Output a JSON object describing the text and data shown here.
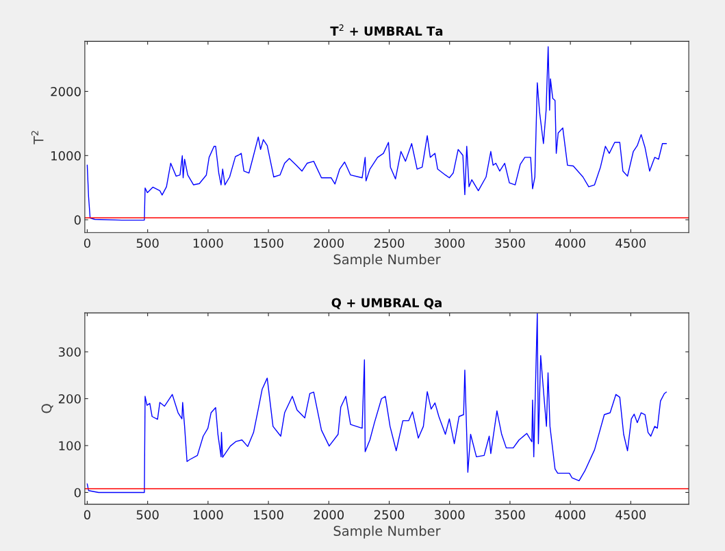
{
  "chart_data": [
    {
      "type": "line",
      "title": "T$^{2}$ + UMBRAL Ta",
      "xlabel": "Sample Number",
      "ylabel": "T$^{2}$",
      "x": [
        0,
        11,
        24,
        62,
        287,
        473,
        479,
        498,
        543,
        601,
        620,
        656,
        691,
        736,
        768,
        787,
        794,
        806,
        832,
        880,
        928,
        986,
        1009,
        1050,
        1063,
        1089,
        1108,
        1121,
        1140,
        1179,
        1227,
        1249,
        1275,
        1297,
        1339,
        1377,
        1416,
        1435,
        1458,
        1490,
        1544,
        1596,
        1634,
        1673,
        1730,
        1778,
        1820,
        1875,
        1939,
        2019,
        2051,
        2090,
        2131,
        2180,
        2276,
        2301,
        2308,
        2340,
        2404,
        2452,
        2494,
        2510,
        2552,
        2597,
        2635,
        2686,
        2731,
        2773,
        2815,
        2840,
        2879,
        2901,
        2965,
        2998,
        3030,
        3071,
        3110,
        3126,
        3142,
        3161,
        3184,
        3238,
        3302,
        3341,
        3360,
        3383,
        3415,
        3456,
        3495,
        3543,
        3585,
        3623,
        3671,
        3687,
        3706,
        3726,
        3745,
        3777,
        3799,
        3816,
        3828,
        3835,
        3854,
        3873,
        3883,
        3899,
        3937,
        3976,
        4024,
        4104,
        4152,
        4200,
        4249,
        4290,
        4322,
        4367,
        4409,
        4435,
        4473,
        4521,
        4554,
        4586,
        4618,
        4656,
        4698,
        4730,
        4762,
        4794
      ],
      "series": [
        {
          "color": "#0000ff",
          "values": [
            850,
            360,
            25,
            6,
            -6,
            -6,
            495,
            422,
            508,
            453,
            385,
            514,
            880,
            679,
            697,
            997,
            654,
            942,
            697,
            544,
            563,
            697,
            972,
            1144,
            1144,
            728,
            544,
            789,
            544,
            667,
            985,
            1003,
            1034,
            758,
            728,
            1003,
            1290,
            1095,
            1248,
            1156,
            667,
            697,
            880,
            954,
            850,
            758,
            880,
            911,
            654,
            654,
            557,
            789,
            899,
            697,
            654,
            972,
            605,
            789,
            972,
            1034,
            1205,
            820,
            636,
            1064,
            911,
            1187,
            789,
            820,
            1309,
            972,
            1034,
            789,
            697,
            654,
            728,
            1095,
            1003,
            391,
            1144,
            514,
            624,
            453,
            667,
            1064,
            850,
            880,
            758,
            880,
            575,
            544,
            862,
            972,
            972,
            483,
            667,
            2134,
            1676,
            1187,
            1706,
            2697,
            1706,
            2196,
            1890,
            1859,
            1034,
            1352,
            1431,
            850,
            838,
            667,
            514,
            544,
            820,
            1144,
            1034,
            1205,
            1205,
            758,
            679,
            1064,
            1156,
            1327,
            1125,
            758,
            972,
            942,
            1187,
            1187
          ]
        }
      ],
      "ref_lines": [
        {
          "axis": "y",
          "value": 30,
          "color": "#ff0000"
        }
      ],
      "xlim": [
        -20,
        4980
      ],
      "ylim": [
        -200,
        2780
      ],
      "xticks": [
        0,
        500,
        1000,
        1500,
        2000,
        2500,
        3000,
        3500,
        4000,
        4500
      ],
      "yticks": [
        0,
        1000,
        2000
      ],
      "grid": false,
      "legend": false
    },
    {
      "type": "line",
      "title": "Q + UMBRAL Qa",
      "xlabel": "Sample Number",
      "ylabel": "Q",
      "x": [
        0,
        11,
        94,
        473,
        479,
        495,
        518,
        537,
        582,
        601,
        640,
        704,
        752,
        784,
        790,
        806,
        826,
        848,
        912,
        960,
        999,
        1025,
        1063,
        1082,
        1108,
        1111,
        1121,
        1185,
        1233,
        1281,
        1329,
        1377,
        1416,
        1448,
        1490,
        1538,
        1602,
        1634,
        1698,
        1737,
        1801,
        1843,
        1875,
        1939,
        2003,
        2077,
        2099,
        2141,
        2180,
        2228,
        2276,
        2295,
        2301,
        2340,
        2378,
        2436,
        2468,
        2507,
        2558,
        2613,
        2661,
        2693,
        2741,
        2783,
        2815,
        2847,
        2879,
        2911,
        2965,
        2998,
        3039,
        3078,
        3116,
        3126,
        3151,
        3174,
        3222,
        3286,
        3328,
        3341,
        3392,
        3431,
        3469,
        3527,
        3575,
        3639,
        3681,
        3687,
        3697,
        3726,
        3735,
        3754,
        3783,
        3802,
        3815,
        3831,
        3873,
        3895,
        3992,
        4014,
        4072,
        4120,
        4200,
        4281,
        4329,
        4377,
        4409,
        4441,
        4473,
        4505,
        4528,
        4554,
        4586,
        4618,
        4643,
        4666,
        4698,
        4720,
        4746,
        4778,
        4794
      ],
      "series": [
        {
          "color": "#0000ff",
          "values": [
            18,
            4,
            0,
            0,
            205,
            186,
            190,
            162,
            156,
            192,
            184,
            209,
            170,
            157,
            192,
            141,
            66,
            70,
            79,
            120,
            137,
            170,
            181,
            124,
            76,
            128,
            75,
            99,
            109,
            112,
            98,
            128,
            178,
            220,
            244,
            141,
            120,
            170,
            205,
            176,
            159,
            211,
            214,
            133,
            99,
            124,
            182,
            205,
            145,
            141,
            137,
            283,
            87,
            112,
            149,
            200,
            205,
            141,
            89,
            153,
            153,
            172,
            116,
            141,
            215,
            178,
            191,
            162,
            124,
            157,
            104,
            162,
            166,
            261,
            43,
            124,
            76,
            79,
            120,
            83,
            174,
            124,
            95,
            95,
            112,
            126,
            108,
            197,
            76,
            382,
            104,
            292,
            199,
            141,
            255,
            141,
            50,
            41,
            41,
            31,
            25,
            46,
            91,
            166,
            170,
            209,
            203,
            124,
            89,
            157,
            167,
            149,
            170,
            166,
            128,
            120,
            141,
            137,
            195,
            211,
            214
          ]
        }
      ],
      "ref_lines": [
        {
          "axis": "y",
          "value": 8,
          "color": "#ff0000"
        }
      ],
      "xlim": [
        -20,
        4980
      ],
      "ylim": [
        -25,
        383
      ],
      "xticks": [
        0,
        500,
        1000,
        1500,
        2000,
        2500,
        3000,
        3500,
        4000,
        4500
      ],
      "yticks": [
        0,
        100,
        200,
        300
      ],
      "grid": false,
      "legend": false
    }
  ]
}
